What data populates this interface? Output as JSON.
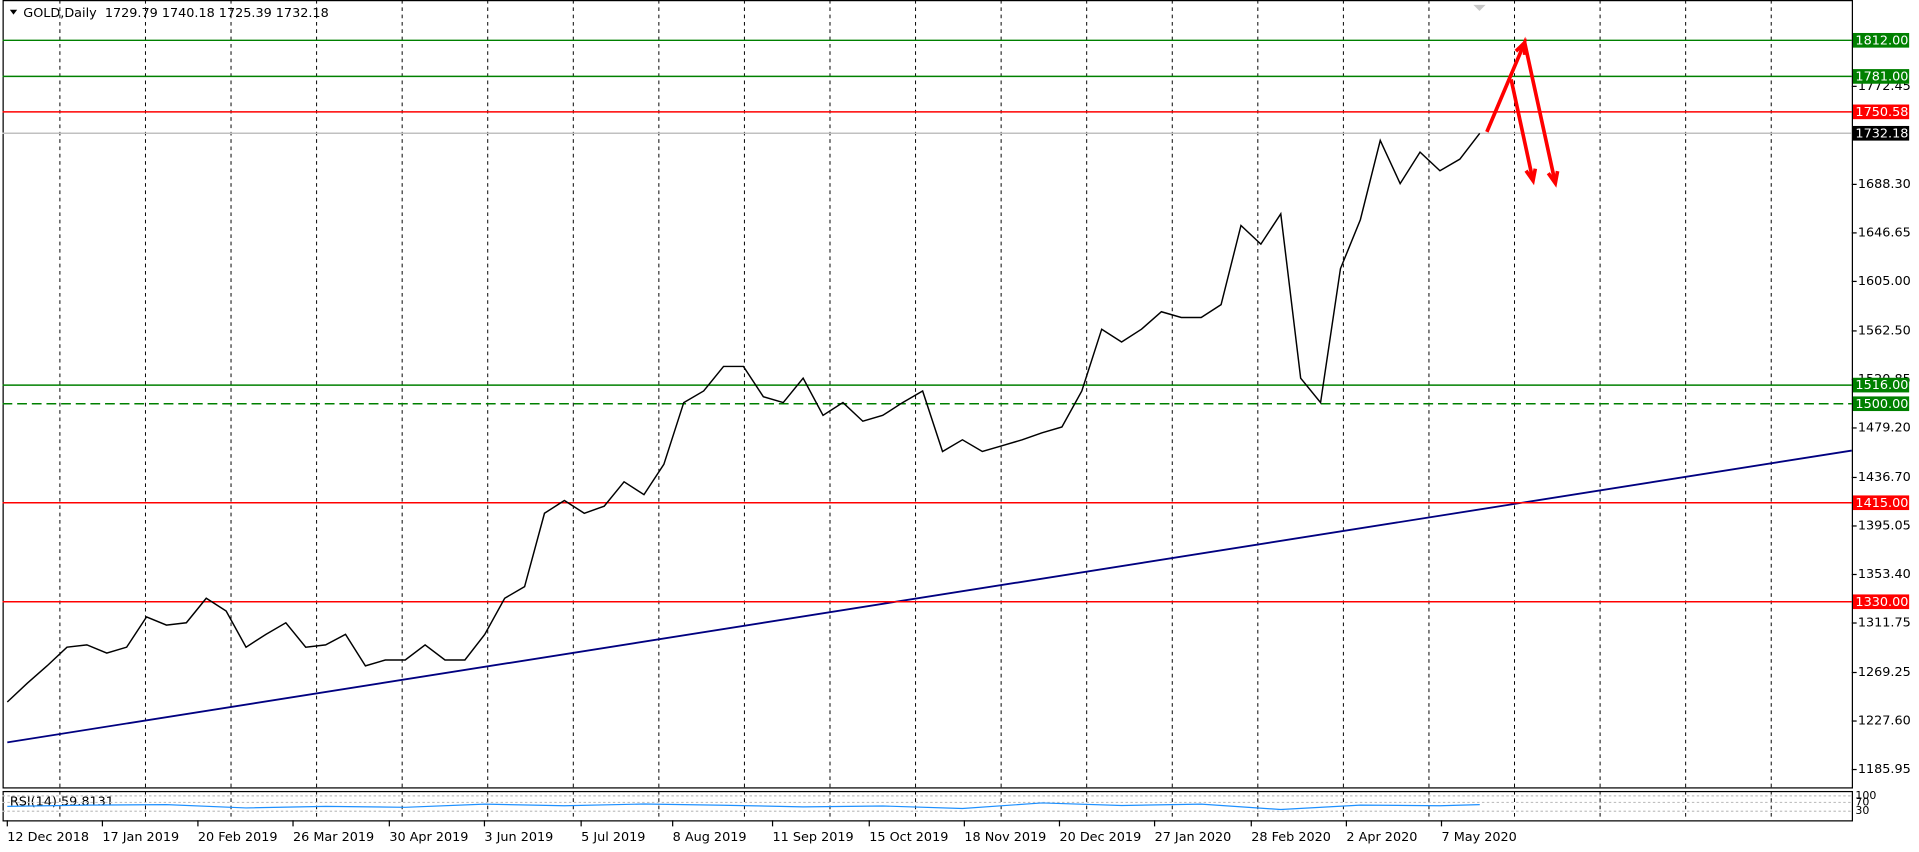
{
  "chart_data": {
    "type": "line",
    "header": "GOLD,Daily  1729.79 1740.18 1725.39 1732.18",
    "color": "#000000",
    "x": [
      0,
      5,
      10,
      15,
      20,
      25,
      30,
      35,
      40,
      45,
      50,
      55,
      60,
      65,
      70,
      75,
      80,
      85,
      90,
      95,
      100,
      105,
      110,
      115,
      120,
      125,
      130,
      135,
      140,
      145,
      150,
      155,
      160,
      165,
      170,
      175,
      180,
      185,
      190,
      195,
      200,
      205,
      210,
      215,
      220,
      225,
      230,
      235,
      240,
      245,
      250,
      255,
      260,
      265,
      270,
      275,
      280,
      285,
      290,
      295,
      300,
      305,
      310,
      315,
      320,
      325,
      330,
      335,
      340,
      345,
      350,
      355,
      360,
      365,
      370
    ],
    "values": [
      1244,
      1260,
      1275,
      1291,
      1293,
      1286,
      1291,
      1317,
      1310,
      1312,
      1333,
      1322,
      1291,
      1302,
      1312,
      1291,
      1293,
      1302,
      1275,
      1280,
      1280,
      1293,
      1280,
      1280,
      1302,
      1333,
      1343,
      1406,
      1417,
      1406,
      1412,
      1433,
      1422,
      1448,
      1501,
      1511,
      1532,
      1532,
      1506,
      1501,
      1522,
      1490,
      1501,
      1485,
      1490,
      1501,
      1511,
      1459,
      1469,
      1459,
      1464,
      1469,
      1475,
      1480,
      1511,
      1564,
      1553,
      1564,
      1579,
      1574,
      1574,
      1585,
      1653,
      1637,
      1663,
      1522,
      1501,
      1616,
      1658,
      1726,
      1689,
      1716,
      1700,
      1710,
      1732.18
    ],
    "xlim": [
      -1.2,
      463.5
    ],
    "xticks": [
      {
        "value": 0,
        "label": "12 Dec 2018"
      },
      {
        "value": 23.9,
        "label": "17 Jan 2019"
      },
      {
        "value": 47.9,
        "label": "20 Feb 2019"
      },
      {
        "value": 71.8,
        "label": "26 Mar 2019"
      },
      {
        "value": 96.0,
        "label": "30 Apr 2019"
      },
      {
        "value": 119.9,
        "label": "3 Jun 2019"
      },
      {
        "value": 144.2,
        "label": "5 Jul 2019"
      },
      {
        "value": 167.2,
        "label": "8 Aug 2019"
      },
      {
        "value": 192.3,
        "label": "11 Sep 2019"
      },
      {
        "value": 216.6,
        "label": "15 Oct 2019"
      },
      {
        "value": 240.5,
        "label": "18 Nov 2019"
      },
      {
        "value": 264.4,
        "label": "20 Dec 2019"
      },
      {
        "value": 288.3,
        "label": "27 Jan 2020"
      },
      {
        "value": 312.6,
        "label": "28 Feb 2020"
      },
      {
        "value": 336.5,
        "label": "2 Apr 2020"
      },
      {
        "value": 360.4,
        "label": "7 May 2020"
      }
    ],
    "ylim": [
      1170.7,
      1846.6
    ],
    "yticks": [
      {
        "value": 1185.95,
        "label": "1185.95"
      },
      {
        "value": 1227.6,
        "label": "1227.60"
      },
      {
        "value": 1269.25,
        "label": "1269.25"
      },
      {
        "value": 1311.75,
        "label": "1311.75"
      },
      {
        "value": 1353.4,
        "label": "1353.40"
      },
      {
        "value": 1395.05,
        "label": "1395.05"
      },
      {
        "value": 1436.7,
        "label": "1436.70"
      },
      {
        "value": 1479.2,
        "label": "1479.20"
      },
      {
        "value": 1520.85,
        "label": "1520.85"
      },
      {
        "value": 1562.5,
        "label": "1562.50"
      },
      {
        "value": 1605,
        "label": "1605.00"
      },
      {
        "value": 1646.65,
        "label": "1646.65"
      },
      {
        "value": 1688.3,
        "label": "1688.30"
      },
      {
        "value": 1772.45,
        "label": "1772.45"
      }
    ],
    "levels": [
      {
        "value": 1812,
        "label": "1812.00",
        "color": "#008000"
      },
      {
        "value": 1781,
        "label": "1781.00",
        "color": "#008000"
      },
      {
        "value": 1750.58,
        "label": "1750.58",
        "color": "#ff0000"
      },
      {
        "value": 1732.18,
        "label": "1732.18",
        "color": "#c0c0c0"
      },
      {
        "value": 1516,
        "label": "1516.00",
        "color": "#008000"
      },
      {
        "value": 1500,
        "label": "1500.00",
        "color": "#008000",
        "dashed": true
      },
      {
        "value": 1415,
        "label": "1415.00",
        "color": "#ff0000"
      },
      {
        "value": 1330,
        "label": "1330.00",
        "color": "#ff0000"
      }
    ],
    "trendline": {
      "x": [
        0,
        463.5
      ],
      "y": [
        1209.3,
        1459.8
      ],
      "color": "#000080"
    },
    "arrows": [
      {
        "x": [
          371.8,
          381.3,
          389
        ],
        "y": [
          1733.4,
          1810,
          1689.4
        ],
        "color": "#ff0000"
      },
      {
        "x": [
          377.9,
          383.4
        ],
        "y": [
          1778.5,
          1691.5
        ],
        "color": "#ff0000"
      }
    ],
    "rsi": {
      "label": "RSI(14) 59.8131",
      "x": [
        0,
        20,
        40,
        60,
        80,
        100,
        120,
        140,
        160,
        180,
        200,
        220,
        240,
        260,
        280,
        300,
        320,
        340,
        360,
        370
      ],
      "values": [
        52,
        58,
        60,
        45,
        52,
        48,
        62,
        55,
        63,
        57,
        50,
        54,
        42,
        68,
        56,
        62,
        38,
        58,
        55,
        59.8131
      ],
      "color": "#1e90ff",
      "ylim": [
        0,
        100
      ],
      "yticks": [
        100,
        70,
        30
      ]
    }
  }
}
